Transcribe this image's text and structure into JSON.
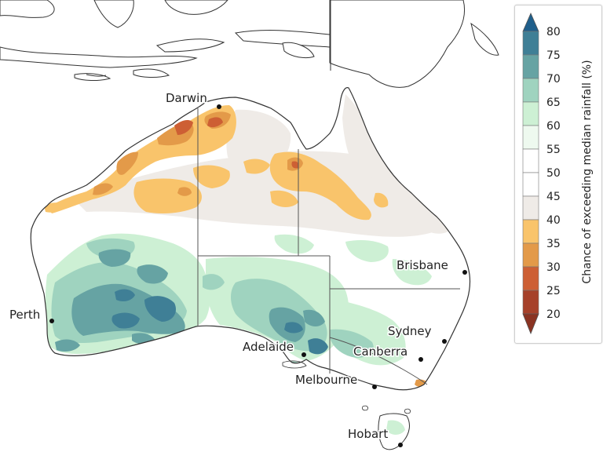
{
  "map": {
    "cities": [
      {
        "name": "Darwin"
      },
      {
        "name": "Brisbane"
      },
      {
        "name": "Perth"
      },
      {
        "name": "Sydney"
      },
      {
        "name": "Adelaide"
      },
      {
        "name": "Canberra"
      },
      {
        "name": "Melbourne"
      },
      {
        "name": "Hobart"
      }
    ]
  },
  "legend": {
    "title": "Chance of exceeding median rainfall (%)",
    "ticks": [
      "80",
      "75",
      "70",
      "65",
      "60",
      "55",
      "50",
      "45",
      "40",
      "35",
      "30",
      "25",
      "20"
    ],
    "colors": {
      "above_75": "#1f5f8b",
      "70_75": "#3f7f96",
      "65_70": "#66a3a3",
      "60_65": "#9fd3bf",
      "55_60": "#cdf0d4",
      "50_55": "#eef9ef",
      "45_50": "#ffffff",
      "40_45": "#efebe7",
      "35_40": "#f9c46b",
      "30_35": "#e39a49",
      "25_30": "#cd5f34",
      "below_25": "#a6412a"
    }
  }
}
